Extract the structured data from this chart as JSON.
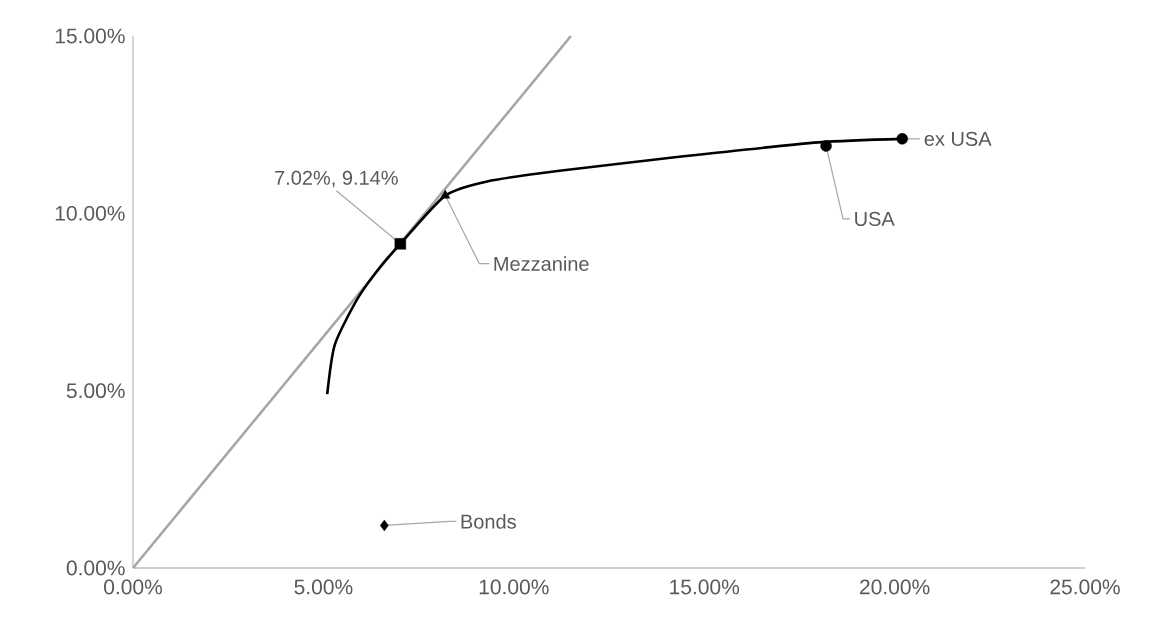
{
  "chart_data": {
    "type": "line",
    "xlim": [
      0,
      25
    ],
    "ylim": [
      0,
      15
    ],
    "xticks": [
      {
        "value": 0,
        "label": "0.00%"
      },
      {
        "value": 5,
        "label": "5.00%"
      },
      {
        "value": 10,
        "label": "10.00%"
      },
      {
        "value": 15,
        "label": "15.00%"
      },
      {
        "value": 20,
        "label": "20.00%"
      },
      {
        "value": 25,
        "label": "25.00%"
      }
    ],
    "yticks": [
      {
        "value": 0,
        "label": "0.00%"
      },
      {
        "value": 5,
        "label": "5.00%"
      },
      {
        "value": 10,
        "label": "10.00%"
      },
      {
        "value": 15,
        "label": "15.00%"
      }
    ],
    "grid": false,
    "series": [
      {
        "color": "#a6a6a6",
        "marker": "none",
        "x": [
          0,
          11.5
        ],
        "values": [
          0,
          15
        ]
      },
      {
        "color": "#000000",
        "marker": "none",
        "x": [
          5.1,
          5.3,
          5.9,
          6.5,
          7.02,
          8.2,
          9.3,
          11.2,
          14.4,
          18.0,
          20.2
        ],
        "values": [
          4.9,
          6.3,
          7.6,
          8.5,
          9.14,
          10.5,
          10.9,
          11.2,
          11.6,
          12.0,
          12.1
        ]
      },
      {
        "type": "scatter",
        "color": "#000000",
        "marker": "square",
        "x": [
          7.02
        ],
        "values": [
          9.14
        ]
      },
      {
        "type": "scatter",
        "name": "Mezzanine",
        "color": "#000000",
        "marker": "triangle",
        "x": [
          8.2
        ],
        "values": [
          10.5
        ]
      },
      {
        "type": "scatter",
        "name": "USA",
        "color": "#000000",
        "marker": "circle",
        "x": [
          18.2
        ],
        "values": [
          11.9
        ]
      },
      {
        "type": "scatter",
        "name": "ex USA",
        "color": "#000000",
        "marker": "circle",
        "x": [
          20.2
        ],
        "values": [
          12.1
        ]
      },
      {
        "type": "scatter",
        "name": "Bonds",
        "color": "#000000",
        "marker": "diamond",
        "x": [
          6.6
        ],
        "values": [
          1.2
        ]
      }
    ],
    "annotations": [
      {
        "text": "7.02%, 9.14%",
        "x": 7.02,
        "y": 9.14
      }
    ]
  }
}
